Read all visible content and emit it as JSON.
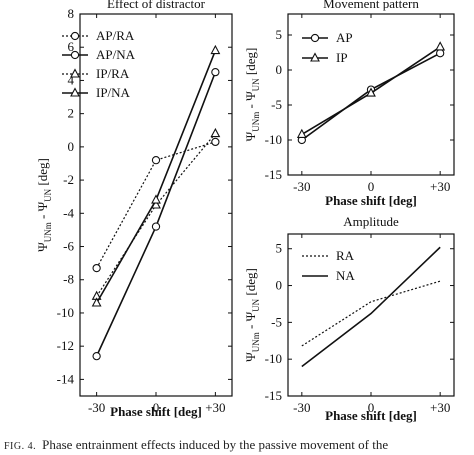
{
  "chart_data": [
    {
      "type": "line",
      "title": "Effect of distractor",
      "xlabel": "Phase shift [deg]",
      "ylabel_parts": [
        "Ψ",
        "UNm",
        " - Ψ",
        "UN",
        " [deg]"
      ],
      "x": [
        -30,
        0,
        30
      ],
      "x_tick_labels": [
        "-30",
        "0",
        "+30"
      ],
      "ylim": [
        -15,
        8
      ],
      "y_ticks": [
        -14,
        -12,
        -10,
        -8,
        -6,
        -4,
        -2,
        0,
        2,
        4,
        6,
        8
      ],
      "series": [
        {
          "name": "AP/RA",
          "marker": "circle",
          "dash": "dotted",
          "values": [
            -7.3,
            -0.8,
            0.3
          ]
        },
        {
          "name": "AP/NA",
          "marker": "circle",
          "dash": "solid",
          "values": [
            -12.6,
            -4.8,
            4.5
          ]
        },
        {
          "name": "IP/RA",
          "marker": "triangle",
          "dash": "dotted",
          "values": [
            -9.0,
            -3.5,
            0.8
          ]
        },
        {
          "name": "IP/NA",
          "marker": "triangle",
          "dash": "solid",
          "values": [
            -9.4,
            -3.2,
            5.8
          ]
        }
      ]
    },
    {
      "type": "line",
      "title": "Movement pattern",
      "xlabel": "Phase shift [deg]",
      "ylabel_parts": [
        "Ψ",
        "UNm",
        " - Ψ",
        "UN",
        " [deg]"
      ],
      "x": [
        -30,
        0,
        30
      ],
      "x_tick_labels": [
        "-30",
        "0",
        "+30"
      ],
      "ylim": [
        -15,
        8
      ],
      "y_ticks": [
        -15,
        -10,
        -5,
        0,
        5
      ],
      "series": [
        {
          "name": "AP",
          "marker": "circle",
          "dash": "solid",
          "values": [
            -10.0,
            -2.8,
            2.4
          ]
        },
        {
          "name": "IP",
          "marker": "triangle",
          "dash": "solid",
          "values": [
            -9.2,
            -3.3,
            3.3
          ]
        }
      ]
    },
    {
      "type": "line",
      "title": "Amplitude",
      "xlabel": "Phase shift [deg]",
      "ylabel_parts": [
        "Ψ",
        "UNm",
        " - Ψ",
        "UN",
        " [deg]"
      ],
      "x": [
        -30,
        0,
        30
      ],
      "x_tick_labels": [
        "-30",
        "0",
        "+30"
      ],
      "ylim": [
        -15,
        7
      ],
      "y_ticks": [
        -15,
        -10,
        -5,
        0,
        5
      ],
      "series": [
        {
          "name": "RA",
          "marker": "none",
          "dash": "dotted",
          "values": [
            -8.2,
            -2.2,
            0.6
          ]
        },
        {
          "name": "NA",
          "marker": "none",
          "dash": "solid",
          "values": [
            -11.0,
            -3.8,
            5.2
          ]
        }
      ]
    }
  ],
  "caption": {
    "label": "FIG. 4.",
    "text": "Phase entrainment effects induced by the passive movement of the"
  }
}
